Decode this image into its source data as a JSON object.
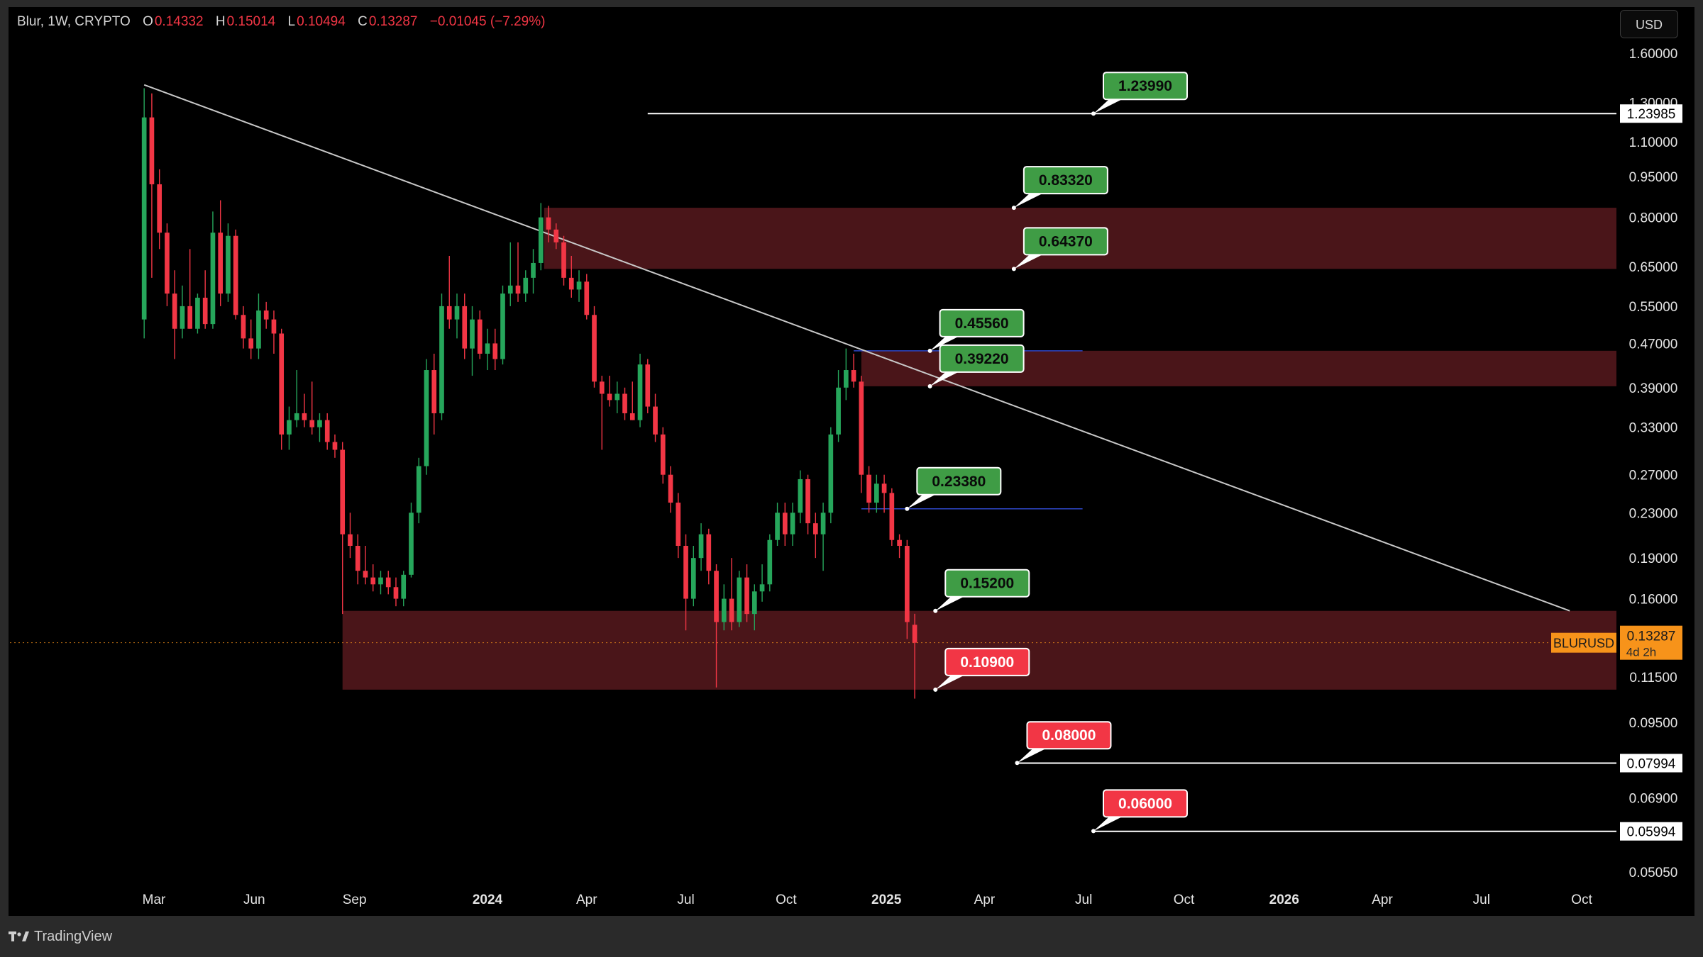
{
  "header": {
    "symbol": "Blur, 1W, CRYPTO",
    "open_label": "O",
    "open": "0.14332",
    "high_label": "H",
    "high": "0.15014",
    "low_label": "L",
    "low": "0.10494",
    "close_label": "C",
    "close": "0.13287",
    "change": "−0.01045 (−7.29%)"
  },
  "currency_button": "USD",
  "brand": {
    "name": "TradingView",
    "logo_icon": "tradingview-logo-icon"
  },
  "colors": {
    "up": "#26a65b",
    "down": "#f23645",
    "zone": "#4a1519",
    "label_green": "#3f9c45",
    "label_red": "#f23645",
    "trendline": "#c8c8c8",
    "blue_line": "#2e47c8",
    "price_tag": "#f7931a"
  },
  "chart_data": {
    "type": "candlestick",
    "symbol": "BLURUSD",
    "timeframe": "1W",
    "scale": "log",
    "grid": false,
    "y_ticks": [
      "1.60000",
      "1.30000",
      "1.10000",
      "0.95000",
      "0.80000",
      "0.65000",
      "0.55000",
      "0.47000",
      "0.39000",
      "0.33000",
      "0.27000",
      "0.23000",
      "0.19000",
      "0.16000",
      "0.11500",
      "0.09500",
      "0.06900",
      "0.05050"
    ],
    "x_ticks": [
      "Mar",
      "Jun",
      "Sep",
      "2024",
      "Apr",
      "Jul",
      "Oct",
      "2025",
      "Apr",
      "Jul",
      "Oct",
      "2026",
      "Apr",
      "Jul",
      "Oct"
    ],
    "x_tick_dates": [
      "2023-03-01",
      "2023-06-01",
      "2023-09-01",
      "2024-01-01",
      "2024-04-01",
      "2024-07-01",
      "2024-10-01",
      "2025-01-01",
      "2025-04-01",
      "2025-07-01",
      "2025-10-01",
      "2026-01-01",
      "2026-04-01",
      "2026-07-01",
      "2026-10-01"
    ],
    "current_price": {
      "symbol": "BLURUSD",
      "value": "0.13287",
      "countdown": "4d 2h"
    },
    "horizontal_lines": [
      {
        "value": 1.23985,
        "label": "1.23985",
        "start_date": "2024-05-27"
      },
      {
        "value": 0.07994,
        "label": "0.07994",
        "start_date": "2025-05-01"
      },
      {
        "value": 0.05994,
        "label": "0.05994",
        "start_date": "2025-07-10"
      }
    ],
    "blue_lines": [
      {
        "value": 0.4556,
        "start_date": "2024-12-02",
        "end_date": "2025-06-30"
      },
      {
        "value": 0.2338,
        "start_date": "2024-12-09",
        "end_date": "2025-06-30"
      }
    ],
    "trendline": {
      "start_date": "2023-02-20",
      "start_value": 1.4,
      "end_date": "2026-09-20",
      "end_value": 0.152
    },
    "zones": [
      {
        "top": 0.8332,
        "bottom": 0.6437,
        "start_date": "2024-02-22"
      },
      {
        "top": 0.4556,
        "bottom": 0.3922,
        "start_date": "2024-12-09"
      },
      {
        "top": 0.152,
        "bottom": 0.109,
        "start_date": "2023-08-21"
      }
    ],
    "level_labels": [
      {
        "text": "1.23990",
        "value": 1.2399,
        "color": "green",
        "anchor_date": "2025-07-10"
      },
      {
        "text": "0.83320",
        "value": 0.8332,
        "color": "green",
        "anchor_date": "2025-04-28"
      },
      {
        "text": "0.64370",
        "value": 0.6437,
        "color": "green",
        "anchor_date": "2025-04-28"
      },
      {
        "text": "0.45560",
        "value": 0.4556,
        "color": "green",
        "anchor_date": "2025-02-10"
      },
      {
        "text": "0.39220",
        "value": 0.3922,
        "color": "green",
        "anchor_date": "2025-02-10"
      },
      {
        "text": "0.23380",
        "value": 0.2338,
        "color": "green",
        "anchor_date": "2025-01-20"
      },
      {
        "text": "0.15200",
        "value": 0.152,
        "color": "green",
        "anchor_date": "2025-02-15"
      },
      {
        "text": "0.10900",
        "value": 0.109,
        "color": "red",
        "anchor_date": "2025-02-15"
      },
      {
        "text": "0.08000",
        "value": 0.08,
        "color": "red",
        "anchor_date": "2025-05-01"
      },
      {
        "text": "0.06000",
        "value": 0.06,
        "color": "red",
        "anchor_date": "2025-07-10"
      }
    ],
    "candles": [
      {
        "date": "2023-02-20",
        "o": 0.52,
        "h": 1.38,
        "l": 0.48,
        "c": 1.22
      },
      {
        "date": "2023-02-27",
        "o": 1.22,
        "h": 1.35,
        "l": 0.62,
        "c": 0.92
      },
      {
        "date": "2023-03-06",
        "o": 0.92,
        "h": 0.98,
        "l": 0.7,
        "c": 0.75
      },
      {
        "date": "2023-03-13",
        "o": 0.75,
        "h": 0.78,
        "l": 0.55,
        "c": 0.58
      },
      {
        "date": "2023-03-20",
        "o": 0.58,
        "h": 0.64,
        "l": 0.44,
        "c": 0.5
      },
      {
        "date": "2023-03-27",
        "o": 0.5,
        "h": 0.6,
        "l": 0.48,
        "c": 0.55
      },
      {
        "date": "2023-04-03",
        "o": 0.55,
        "h": 0.7,
        "l": 0.5,
        "c": 0.5
      },
      {
        "date": "2023-04-10",
        "o": 0.5,
        "h": 0.58,
        "l": 0.49,
        "c": 0.57
      },
      {
        "date": "2023-04-17",
        "o": 0.57,
        "h": 0.64,
        "l": 0.5,
        "c": 0.51
      },
      {
        "date": "2023-04-24",
        "o": 0.51,
        "h": 0.82,
        "l": 0.5,
        "c": 0.75
      },
      {
        "date": "2023-05-01",
        "o": 0.75,
        "h": 0.86,
        "l": 0.55,
        "c": 0.58
      },
      {
        "date": "2023-05-08",
        "o": 0.58,
        "h": 0.78,
        "l": 0.56,
        "c": 0.74
      },
      {
        "date": "2023-05-15",
        "o": 0.74,
        "h": 0.76,
        "l": 0.52,
        "c": 0.53
      },
      {
        "date": "2023-05-22",
        "o": 0.53,
        "h": 0.55,
        "l": 0.46,
        "c": 0.48
      },
      {
        "date": "2023-05-29",
        "o": 0.48,
        "h": 0.52,
        "l": 0.44,
        "c": 0.46
      },
      {
        "date": "2023-06-05",
        "o": 0.46,
        "h": 0.58,
        "l": 0.44,
        "c": 0.54
      },
      {
        "date": "2023-06-12",
        "o": 0.54,
        "h": 0.56,
        "l": 0.5,
        "c": 0.52
      },
      {
        "date": "2023-06-19",
        "o": 0.52,
        "h": 0.54,
        "l": 0.45,
        "c": 0.49
      },
      {
        "date": "2023-06-26",
        "o": 0.49,
        "h": 0.5,
        "l": 0.3,
        "c": 0.32
      },
      {
        "date": "2023-07-03",
        "o": 0.32,
        "h": 0.36,
        "l": 0.3,
        "c": 0.34
      },
      {
        "date": "2023-07-10",
        "o": 0.34,
        "h": 0.42,
        "l": 0.33,
        "c": 0.35
      },
      {
        "date": "2023-07-17",
        "o": 0.35,
        "h": 0.38,
        "l": 0.33,
        "c": 0.34
      },
      {
        "date": "2023-07-24",
        "o": 0.34,
        "h": 0.4,
        "l": 0.32,
        "c": 0.33
      },
      {
        "date": "2023-07-31",
        "o": 0.33,
        "h": 0.35,
        "l": 0.31,
        "c": 0.34
      },
      {
        "date": "2023-08-07",
        "o": 0.34,
        "h": 0.35,
        "l": 0.3,
        "c": 0.31
      },
      {
        "date": "2023-08-14",
        "o": 0.31,
        "h": 0.32,
        "l": 0.29,
        "c": 0.3
      },
      {
        "date": "2023-08-21",
        "o": 0.3,
        "h": 0.31,
        "l": 0.15,
        "c": 0.21
      },
      {
        "date": "2023-08-28",
        "o": 0.21,
        "h": 0.23,
        "l": 0.19,
        "c": 0.2
      },
      {
        "date": "2023-09-04",
        "o": 0.2,
        "h": 0.21,
        "l": 0.17,
        "c": 0.18
      },
      {
        "date": "2023-09-11",
        "o": 0.18,
        "h": 0.2,
        "l": 0.17,
        "c": 0.175
      },
      {
        "date": "2023-09-18",
        "o": 0.175,
        "h": 0.185,
        "l": 0.165,
        "c": 0.17
      },
      {
        "date": "2023-09-25",
        "o": 0.17,
        "h": 0.18,
        "l": 0.163,
        "c": 0.175
      },
      {
        "date": "2023-10-02",
        "o": 0.175,
        "h": 0.18,
        "l": 0.163,
        "c": 0.168
      },
      {
        "date": "2023-10-09",
        "o": 0.168,
        "h": 0.175,
        "l": 0.155,
        "c": 0.16
      },
      {
        "date": "2023-10-16",
        "o": 0.16,
        "h": 0.18,
        "l": 0.155,
        "c": 0.177
      },
      {
        "date": "2023-10-23",
        "o": 0.177,
        "h": 0.24,
        "l": 0.175,
        "c": 0.23
      },
      {
        "date": "2023-10-30",
        "o": 0.23,
        "h": 0.29,
        "l": 0.22,
        "c": 0.28
      },
      {
        "date": "2023-11-06",
        "o": 0.28,
        "h": 0.44,
        "l": 0.27,
        "c": 0.42
      },
      {
        "date": "2023-11-13",
        "o": 0.42,
        "h": 0.45,
        "l": 0.32,
        "c": 0.35
      },
      {
        "date": "2023-11-20",
        "o": 0.35,
        "h": 0.58,
        "l": 0.34,
        "c": 0.55
      },
      {
        "date": "2023-11-27",
        "o": 0.55,
        "h": 0.68,
        "l": 0.5,
        "c": 0.52
      },
      {
        "date": "2023-12-04",
        "o": 0.52,
        "h": 0.58,
        "l": 0.48,
        "c": 0.55
      },
      {
        "date": "2023-12-11",
        "o": 0.55,
        "h": 0.58,
        "l": 0.44,
        "c": 0.46
      },
      {
        "date": "2023-12-18",
        "o": 0.46,
        "h": 0.55,
        "l": 0.41,
        "c": 0.52
      },
      {
        "date": "2023-12-25",
        "o": 0.52,
        "h": 0.54,
        "l": 0.44,
        "c": 0.45
      },
      {
        "date": "2024-01-01",
        "o": 0.45,
        "h": 0.5,
        "l": 0.42,
        "c": 0.47
      },
      {
        "date": "2024-01-08",
        "o": 0.47,
        "h": 0.5,
        "l": 0.42,
        "c": 0.44
      },
      {
        "date": "2024-01-15",
        "o": 0.44,
        "h": 0.6,
        "l": 0.43,
        "c": 0.58
      },
      {
        "date": "2024-01-22",
        "o": 0.58,
        "h": 0.72,
        "l": 0.55,
        "c": 0.6
      },
      {
        "date": "2024-01-29",
        "o": 0.6,
        "h": 0.72,
        "l": 0.56,
        "c": 0.58
      },
      {
        "date": "2024-02-05",
        "o": 0.58,
        "h": 0.64,
        "l": 0.56,
        "c": 0.62
      },
      {
        "date": "2024-02-12",
        "o": 0.62,
        "h": 0.7,
        "l": 0.58,
        "c": 0.66
      },
      {
        "date": "2024-02-19",
        "o": 0.66,
        "h": 0.85,
        "l": 0.64,
        "c": 0.8
      },
      {
        "date": "2024-02-26",
        "o": 0.8,
        "h": 0.84,
        "l": 0.72,
        "c": 0.76
      },
      {
        "date": "2024-03-04",
        "o": 0.76,
        "h": 0.78,
        "l": 0.7,
        "c": 0.72
      },
      {
        "date": "2024-03-11",
        "o": 0.72,
        "h": 0.74,
        "l": 0.6,
        "c": 0.62
      },
      {
        "date": "2024-03-18",
        "o": 0.62,
        "h": 0.68,
        "l": 0.57,
        "c": 0.59
      },
      {
        "date": "2024-03-25",
        "o": 0.59,
        "h": 0.64,
        "l": 0.56,
        "c": 0.61
      },
      {
        "date": "2024-04-01",
        "o": 0.61,
        "h": 0.63,
        "l": 0.52,
        "c": 0.53
      },
      {
        "date": "2024-04-08",
        "o": 0.53,
        "h": 0.55,
        "l": 0.39,
        "c": 0.4
      },
      {
        "date": "2024-04-15",
        "o": 0.4,
        "h": 0.41,
        "l": 0.3,
        "c": 0.38
      },
      {
        "date": "2024-04-22",
        "o": 0.38,
        "h": 0.41,
        "l": 0.36,
        "c": 0.37
      },
      {
        "date": "2024-04-29",
        "o": 0.37,
        "h": 0.4,
        "l": 0.35,
        "c": 0.38
      },
      {
        "date": "2024-05-06",
        "o": 0.38,
        "h": 0.39,
        "l": 0.34,
        "c": 0.35
      },
      {
        "date": "2024-05-13",
        "o": 0.35,
        "h": 0.4,
        "l": 0.34,
        "c": 0.34
      },
      {
        "date": "2024-05-20",
        "o": 0.34,
        "h": 0.45,
        "l": 0.33,
        "c": 0.43
      },
      {
        "date": "2024-05-27",
        "o": 0.43,
        "h": 0.44,
        "l": 0.35,
        "c": 0.36
      },
      {
        "date": "2024-06-03",
        "o": 0.36,
        "h": 0.38,
        "l": 0.31,
        "c": 0.32
      },
      {
        "date": "2024-06-10",
        "o": 0.32,
        "h": 0.33,
        "l": 0.26,
        "c": 0.27
      },
      {
        "date": "2024-06-17",
        "o": 0.27,
        "h": 0.28,
        "l": 0.23,
        "c": 0.24
      },
      {
        "date": "2024-06-24",
        "o": 0.24,
        "h": 0.25,
        "l": 0.19,
        "c": 0.2
      },
      {
        "date": "2024-07-01",
        "o": 0.2,
        "h": 0.21,
        "l": 0.14,
        "c": 0.16
      },
      {
        "date": "2024-07-08",
        "o": 0.16,
        "h": 0.2,
        "l": 0.155,
        "c": 0.19
      },
      {
        "date": "2024-07-15",
        "o": 0.19,
        "h": 0.22,
        "l": 0.18,
        "c": 0.21
      },
      {
        "date": "2024-07-22",
        "o": 0.21,
        "h": 0.215,
        "l": 0.17,
        "c": 0.18
      },
      {
        "date": "2024-07-29",
        "o": 0.18,
        "h": 0.185,
        "l": 0.11,
        "c": 0.145
      },
      {
        "date": "2024-08-05",
        "o": 0.145,
        "h": 0.17,
        "l": 0.14,
        "c": 0.16
      },
      {
        "date": "2024-08-12",
        "o": 0.16,
        "h": 0.19,
        "l": 0.14,
        "c": 0.145
      },
      {
        "date": "2024-08-19",
        "o": 0.145,
        "h": 0.18,
        "l": 0.142,
        "c": 0.175
      },
      {
        "date": "2024-08-26",
        "o": 0.175,
        "h": 0.185,
        "l": 0.145,
        "c": 0.15
      },
      {
        "date": "2024-09-02",
        "o": 0.15,
        "h": 0.17,
        "l": 0.14,
        "c": 0.165
      },
      {
        "date": "2024-09-09",
        "o": 0.165,
        "h": 0.185,
        "l": 0.158,
        "c": 0.17
      },
      {
        "date": "2024-09-16",
        "o": 0.17,
        "h": 0.21,
        "l": 0.165,
        "c": 0.205
      },
      {
        "date": "2024-09-23",
        "o": 0.205,
        "h": 0.24,
        "l": 0.2,
        "c": 0.23
      },
      {
        "date": "2024-09-30",
        "o": 0.23,
        "h": 0.24,
        "l": 0.2,
        "c": 0.21
      },
      {
        "date": "2024-10-07",
        "o": 0.21,
        "h": 0.24,
        "l": 0.2,
        "c": 0.23
      },
      {
        "date": "2024-10-14",
        "o": 0.23,
        "h": 0.275,
        "l": 0.22,
        "c": 0.265
      },
      {
        "date": "2024-10-21",
        "o": 0.265,
        "h": 0.27,
        "l": 0.21,
        "c": 0.22
      },
      {
        "date": "2024-10-28",
        "o": 0.22,
        "h": 0.23,
        "l": 0.19,
        "c": 0.21
      },
      {
        "date": "2024-11-04",
        "o": 0.21,
        "h": 0.24,
        "l": 0.18,
        "c": 0.23
      },
      {
        "date": "2024-11-11",
        "o": 0.23,
        "h": 0.33,
        "l": 0.22,
        "c": 0.32
      },
      {
        "date": "2024-11-18",
        "o": 0.32,
        "h": 0.42,
        "l": 0.31,
        "c": 0.39
      },
      {
        "date": "2024-11-25",
        "o": 0.39,
        "h": 0.46,
        "l": 0.37,
        "c": 0.42
      },
      {
        "date": "2024-12-02",
        "o": 0.42,
        "h": 0.45,
        "l": 0.39,
        "c": 0.4
      },
      {
        "date": "2024-12-09",
        "o": 0.4,
        "h": 0.41,
        "l": 0.25,
        "c": 0.27
      },
      {
        "date": "2024-12-16",
        "o": 0.27,
        "h": 0.28,
        "l": 0.23,
        "c": 0.24
      },
      {
        "date": "2024-12-23",
        "o": 0.24,
        "h": 0.27,
        "l": 0.23,
        "c": 0.26
      },
      {
        "date": "2024-12-30",
        "o": 0.26,
        "h": 0.27,
        "l": 0.23,
        "c": 0.25
      },
      {
        "date": "2025-01-06",
        "o": 0.25,
        "h": 0.255,
        "l": 0.2,
        "c": 0.205
      },
      {
        "date": "2025-01-13",
        "o": 0.205,
        "h": 0.21,
        "l": 0.19,
        "c": 0.2
      },
      {
        "date": "2025-01-20",
        "o": 0.2,
        "h": 0.205,
        "l": 0.135,
        "c": 0.145
      },
      {
        "date": "2025-01-27",
        "o": 0.14332,
        "h": 0.15014,
        "l": 0.10494,
        "c": 0.13287
      }
    ]
  }
}
